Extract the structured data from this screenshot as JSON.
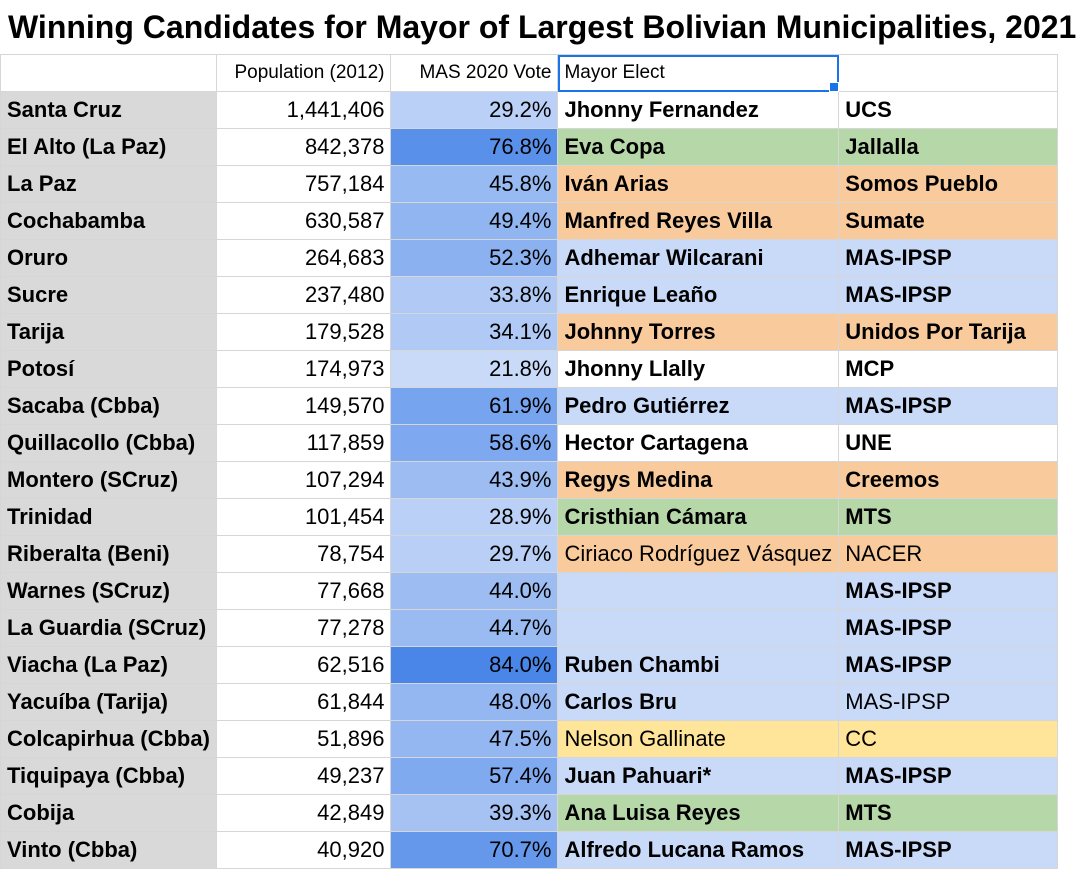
{
  "title": "Winning Candidates for Mayor of Largest Bolivian Municipalities, 2021",
  "headers": {
    "city": "",
    "population": "Population (2012)",
    "vote": "MAS 2020 Vote",
    "mayor": "Mayor Elect",
    "party": ""
  },
  "colors": {
    "blue": "#c9daf8",
    "green": "#b6d7a8",
    "orange": "#f9cb9c",
    "yellow": "#ffe599",
    "white": "#ffffff",
    "selection": "#1a73e8"
  },
  "rows": [
    {
      "city": "Santa Cruz",
      "population": "1,441,406",
      "vote": "29.2%",
      "vote_value": 29.2,
      "mayor": "Jhonny Fernandez",
      "party": "UCS",
      "fill": "white",
      "bold": true
    },
    {
      "city": "El Alto (La Paz)",
      "population": "842,378",
      "vote": "76.8%",
      "vote_value": 76.8,
      "mayor": "Eva Copa",
      "party": "Jallalla",
      "fill": "green",
      "bold": true
    },
    {
      "city": "La Paz",
      "population": "757,184",
      "vote": "45.8%",
      "vote_value": 45.8,
      "mayor": "Iván Arias",
      "party": "Somos Pueblo",
      "fill": "orange",
      "bold": true
    },
    {
      "city": "Cochabamba",
      "population": "630,587",
      "vote": "49.4%",
      "vote_value": 49.4,
      "mayor": "Manfred Reyes Villa",
      "party": "Sumate",
      "fill": "orange",
      "bold": true
    },
    {
      "city": "Oruro",
      "population": "264,683",
      "vote": "52.3%",
      "vote_value": 52.3,
      "mayor": "Adhemar Wilcarani",
      "party": "MAS-IPSP",
      "fill": "blue",
      "bold": true
    },
    {
      "city": "Sucre",
      "population": "237,480",
      "vote": "33.8%",
      "vote_value": 33.8,
      "mayor": "Enrique Leaño",
      "party": "MAS-IPSP",
      "fill": "blue",
      "bold": true
    },
    {
      "city": "Tarija",
      "population": "179,528",
      "vote": "34.1%",
      "vote_value": 34.1,
      "mayor": "Johnny Torres",
      "party": "Unidos Por Tarija",
      "fill": "orange",
      "bold": true
    },
    {
      "city": "Potosí",
      "population": "174,973",
      "vote": "21.8%",
      "vote_value": 21.8,
      "mayor": "Jhonny Llally",
      "party": "MCP",
      "fill": "white",
      "bold": true
    },
    {
      "city": "Sacaba (Cbba)",
      "population": "149,570",
      "vote": "61.9%",
      "vote_value": 61.9,
      "mayor": "Pedro Gutiérrez",
      "party": "MAS-IPSP",
      "fill": "blue",
      "bold": true
    },
    {
      "city": "Quillacollo (Cbba)",
      "population": "117,859",
      "vote": "58.6%",
      "vote_value": 58.6,
      "mayor": "Hector Cartagena",
      "party": "UNE",
      "fill": "white",
      "bold": true
    },
    {
      "city": "Montero (SCruz)",
      "population": "107,294",
      "vote": "43.9%",
      "vote_value": 43.9,
      "mayor": "Regys Medina",
      "party": "Creemos",
      "fill": "orange",
      "bold": true
    },
    {
      "city": "Trinidad",
      "population": "101,454",
      "vote": "28.9%",
      "vote_value": 28.9,
      "mayor": "Cristhian Cámara",
      "party": "MTS",
      "fill": "green",
      "bold": true
    },
    {
      "city": "Riberalta (Beni)",
      "population": "78,754",
      "vote": "29.7%",
      "vote_value": 29.7,
      "mayor": "Ciriaco Rodríguez Vásquez",
      "party": "NACER",
      "fill": "orange",
      "bold": false
    },
    {
      "city": "Warnes (SCruz)",
      "population": "77,668",
      "vote": "44.0%",
      "vote_value": 44.0,
      "mayor": "",
      "party": "MAS-IPSP",
      "fill": "blue",
      "bold": true
    },
    {
      "city": "La Guardia (SCruz)",
      "population": "77,278",
      "vote": "44.7%",
      "vote_value": 44.7,
      "mayor": "",
      "party": "MAS-IPSP",
      "fill": "blue",
      "bold": true
    },
    {
      "city": "Viacha (La Paz)",
      "population": "62,516",
      "vote": "84.0%",
      "vote_value": 84.0,
      "mayor": "Ruben Chambi",
      "party": "MAS-IPSP",
      "fill": "blue",
      "bold": true
    },
    {
      "city": "Yacuíba (Tarija)",
      "population": "61,844",
      "vote": "48.0%",
      "vote_value": 48.0,
      "mayor": "Carlos Bru",
      "party": "MAS-IPSP",
      "fill": "blue",
      "bold": true,
      "party_bold": false
    },
    {
      "city": "Colcapirhua (Cbba)",
      "population": "51,896",
      "vote": "47.5%",
      "vote_value": 47.5,
      "mayor": "Nelson Gallinate",
      "party": "CC",
      "fill": "yellow",
      "bold": false
    },
    {
      "city": "Tiquipaya (Cbba)",
      "population": "49,237",
      "vote": "57.4%",
      "vote_value": 57.4,
      "mayor": "Juan Pahuari*",
      "party": "MAS-IPSP",
      "fill": "blue",
      "bold": true
    },
    {
      "city": "Cobija",
      "population": "42,849",
      "vote": "39.3%",
      "vote_value": 39.3,
      "mayor": "Ana Luisa Reyes",
      "party": "MTS",
      "fill": "green",
      "bold": true
    },
    {
      "city": "Vinto (Cbba)",
      "population": "40,920",
      "vote": "70.7%",
      "vote_value": 70.7,
      "mayor": "Alfredo Lucana Ramos",
      "party": "MAS-IPSP",
      "fill": "blue",
      "bold": true
    }
  ]
}
